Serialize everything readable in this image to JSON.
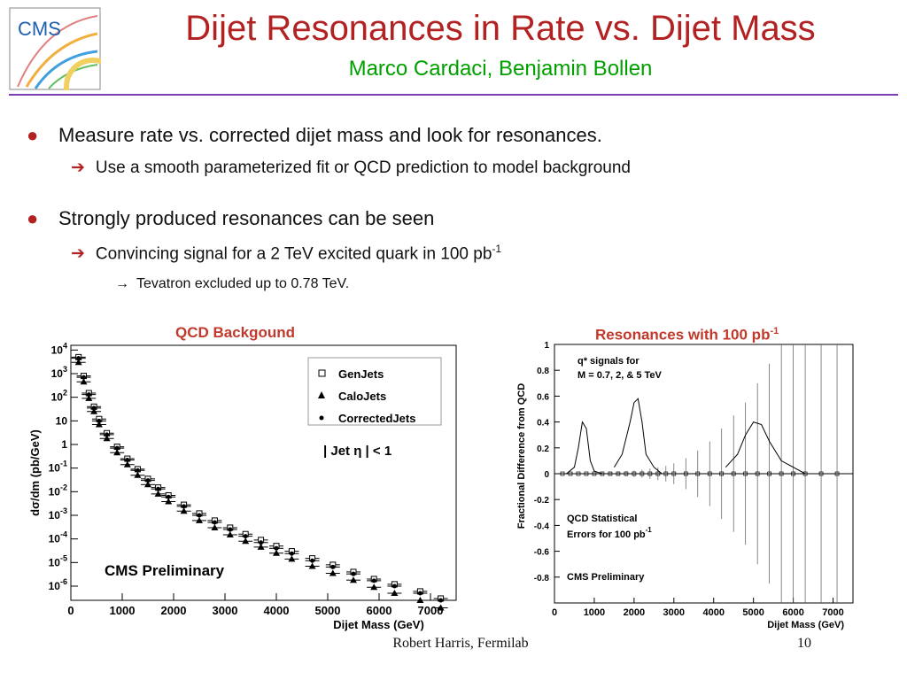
{
  "header": {
    "title": "Dijet Resonances in Rate vs. Dijet Mass",
    "subtitle": "Marco Cardaci, Benjamin Bollen",
    "logo_text": "CMS"
  },
  "bullets": [
    {
      "text": "Measure rate vs. corrected dijet mass and look for resonances.",
      "sub": [
        {
          "text": "Use a smooth parameterized fit or QCD prediction to model background"
        }
      ]
    },
    {
      "text": "Strongly produced resonances can be seen",
      "sub": [
        {
          "text": "Convincing signal for a 2 TeV excited quark in 100 pb",
          "sup": "-1"
        }
      ],
      "subsub": [
        {
          "text": "Tevatron excluded up to 0.78 TeV."
        }
      ]
    }
  ],
  "plots": {
    "left_label": "QCD Backgound",
    "right_label": "Resonances with 100 pb",
    "right_label_sup": "-1"
  },
  "footer": {
    "author": "Robert Harris, Fermilab",
    "page": "10"
  },
  "colors": {
    "title": "#b22222",
    "subtitle": "#00a000",
    "rule": "#7b3fb5",
    "plot_label": "#c0392b"
  },
  "chart_data": [
    {
      "type": "scatter",
      "xlabel": "Dijet Mass (GeV)",
      "ylabel": "dσ/dm (pb/GeV)",
      "x_ticks": [
        "0",
        "1000",
        "2000",
        "3000",
        "4000",
        "5000",
        "6000",
        "7000"
      ],
      "y_ticks": [
        "10^4",
        "10^3",
        "10^2",
        "10",
        "1",
        "10^-1",
        "10^-2",
        "10^-3",
        "10^-4",
        "10^-5",
        "10^-6"
      ],
      "xlim": [
        0,
        7500
      ],
      "ylim_log10": [
        -6.6,
        4.2
      ],
      "legend": [
        "GenJets",
        "CaloJets",
        "CorrectedJets"
      ],
      "annotations": [
        "| Jet  η | < 1",
        "CMS Preliminary"
      ],
      "series": [
        {
          "name": "GenJets",
          "x": [
            150,
            250,
            350,
            450,
            550,
            700,
            900,
            1100,
            1300,
            1500,
            1700,
            1900,
            2200,
            2500,
            2800,
            3100,
            3400,
            3700,
            4000,
            4300,
            4700,
            5100,
            5500,
            5900,
            6300,
            6800,
            7200
          ],
          "values": [
            5000,
            800,
            150,
            40,
            12,
            3,
            0.8,
            0.25,
            0.09,
            0.035,
            0.015,
            0.007,
            0.0028,
            0.0012,
            0.0006,
            0.0003,
            0.00016,
            9e-05,
            5e-05,
            3e-05,
            1.5e-05,
            8e-06,
            4e-06,
            2e-06,
            1.2e-06,
            6e-07,
            3e-07
          ]
        },
        {
          "name": "CaloJets",
          "x": [
            150,
            250,
            350,
            450,
            550,
            700,
            900,
            1100,
            1300,
            1500,
            1700,
            1900,
            2200,
            2500,
            2800,
            3100,
            3400,
            3700,
            4000,
            4300,
            4700,
            5100,
            5500,
            5900,
            6300,
            6800,
            7200
          ],
          "values": [
            3000,
            450,
            90,
            25,
            7,
            1.8,
            0.45,
            0.14,
            0.05,
            0.02,
            0.008,
            0.0038,
            0.0015,
            0.0006,
            0.0003,
            0.00015,
            8e-05,
            4.5e-05,
            2.5e-05,
            1.4e-05,
            7e-06,
            3.5e-06,
            1.8e-06,
            9e-07,
            5e-07,
            2.5e-07,
            1.2e-07
          ]
        },
        {
          "name": "CorrectedJets",
          "x": [
            150,
            250,
            350,
            450,
            550,
            700,
            900,
            1100,
            1300,
            1500,
            1700,
            1900,
            2200,
            2500,
            2800,
            3100,
            3400,
            3700,
            4000,
            4300,
            4700,
            5100,
            5500,
            5900,
            6300,
            6800,
            7200
          ],
          "values": [
            4500,
            700,
            130,
            35,
            10,
            2.6,
            0.7,
            0.22,
            0.08,
            0.03,
            0.013,
            0.006,
            0.0024,
            0.001,
            0.0005,
            0.00025,
            0.00013,
            7e-05,
            4e-05,
            2.4e-05,
            1.2e-05,
            6.5e-06,
            3.3e-06,
            1.7e-06,
            1e-06,
            5e-07,
            2.5e-07
          ]
        }
      ]
    },
    {
      "type": "line",
      "xlabel": "Dijet Mass (GeV)",
      "ylabel": "Fractional Difference from QCD",
      "x_ticks": [
        "0",
        "1000",
        "2000",
        "3000",
        "4000",
        "5000",
        "6000",
        "7000"
      ],
      "y_ticks": [
        "1",
        "0.8",
        "0.6",
        "0.4",
        "0.2",
        "0",
        "-0.2",
        "-0.4",
        "-0.6",
        "-0.8"
      ],
      "xlim": [
        0,
        7500
      ],
      "ylim": [
        -1,
        1
      ],
      "annotations": [
        "q*  signals  for",
        "M = 0.7,  2,  &  5 TeV",
        "QCD Statistical",
        "Errors for 100 pb",
        "CMS Preliminary"
      ],
      "annotation_sup": "-1",
      "signals": [
        {
          "name": "0.7 TeV",
          "x": [
            300,
            500,
            600,
            700,
            800,
            900,
            1000,
            1200
          ],
          "values": [
            0,
            0.05,
            0.2,
            0.4,
            0.35,
            0.1,
            0.02,
            0
          ]
        },
        {
          "name": "2 TeV",
          "x": [
            1500,
            1700,
            1900,
            2000,
            2100,
            2200,
            2300,
            2500,
            2700
          ],
          "values": [
            0.05,
            0.15,
            0.4,
            0.55,
            0.58,
            0.4,
            0.15,
            0.05,
            0
          ]
        },
        {
          "name": "5 TeV",
          "x": [
            4300,
            4600,
            4800,
            5000,
            5200,
            5400,
            5700,
            6000,
            6300
          ],
          "values": [
            0.05,
            0.15,
            0.3,
            0.4,
            0.38,
            0.25,
            0.1,
            0.05,
            0
          ]
        }
      ],
      "errors": {
        "x": [
          200,
          400,
          600,
          800,
          1000,
          1200,
          1400,
          1600,
          1800,
          2000,
          2200,
          2400,
          2600,
          2800,
          3000,
          3300,
          3600,
          3900,
          4200,
          4500,
          4800,
          5100,
          5400,
          5700,
          6000,
          6300,
          6700,
          7100
        ],
        "values": [
          0.005,
          0.005,
          0.006,
          0.007,
          0.008,
          0.01,
          0.012,
          0.015,
          0.02,
          0.025,
          0.03,
          0.04,
          0.05,
          0.06,
          0.08,
          0.12,
          0.18,
          0.25,
          0.35,
          0.45,
          0.55,
          0.7,
          0.85,
          1,
          1,
          1,
          1,
          1
        ]
      }
    }
  ]
}
